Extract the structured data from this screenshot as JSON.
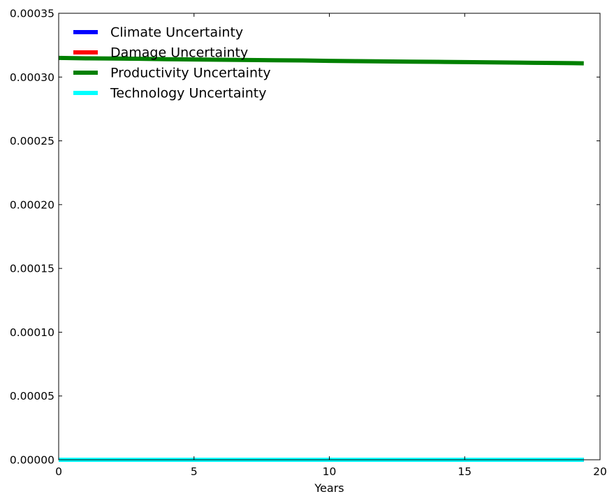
{
  "chart_data": {
    "type": "line",
    "title": "",
    "xlabel": "Years",
    "ylabel": "",
    "xlim": [
      0,
      20
    ],
    "ylim": [
      0,
      0.00035
    ],
    "xticks": [
      "0",
      "5",
      "10",
      "15",
      "20"
    ],
    "yticks": [
      "0.00000",
      "0.00005",
      "0.00010",
      "0.00015",
      "0.00020",
      "0.00025",
      "0.00030",
      "0.00035"
    ],
    "grid": false,
    "legend_position": "top-left",
    "x": [
      0,
      1,
      2,
      3,
      4,
      5,
      6,
      7,
      8,
      9,
      10,
      11,
      12,
      13,
      14,
      15,
      16,
      17,
      18,
      19,
      19.4
    ],
    "series": [
      {
        "name": "Climate Uncertainty",
        "color": "#0000ff",
        "values": [
          0,
          0,
          0,
          0,
          0,
          0,
          0,
          0,
          0,
          0,
          0,
          0,
          0,
          0,
          0,
          0,
          0,
          0,
          0,
          0,
          0
        ]
      },
      {
        "name": "Damage Uncertainty",
        "color": "#ff0000",
        "values": [
          0,
          0,
          0,
          0,
          0,
          0,
          0,
          0,
          0,
          0,
          0,
          0,
          0,
          0,
          0,
          0,
          0,
          0,
          0,
          0,
          0
        ]
      },
      {
        "name": "Productivity Uncertainty",
        "color": "#008000",
        "values": [
          0.000315,
          0.0003147,
          0.0003145,
          0.0003143,
          0.000314,
          0.0003138,
          0.0003136,
          0.0003134,
          0.0003132,
          0.000313,
          0.0003127,
          0.0003125,
          0.0003123,
          0.0003121,
          0.0003119,
          0.0003117,
          0.0003115,
          0.0003113,
          0.0003111,
          0.0003109,
          0.0003108
        ]
      },
      {
        "name": "Technology Uncertainty",
        "color": "#00ffff",
        "values": [
          0,
          0,
          0,
          0,
          0,
          0,
          0,
          0,
          0,
          0,
          0,
          0,
          0,
          0,
          0,
          0,
          0,
          0,
          0,
          0,
          0
        ]
      }
    ]
  }
}
